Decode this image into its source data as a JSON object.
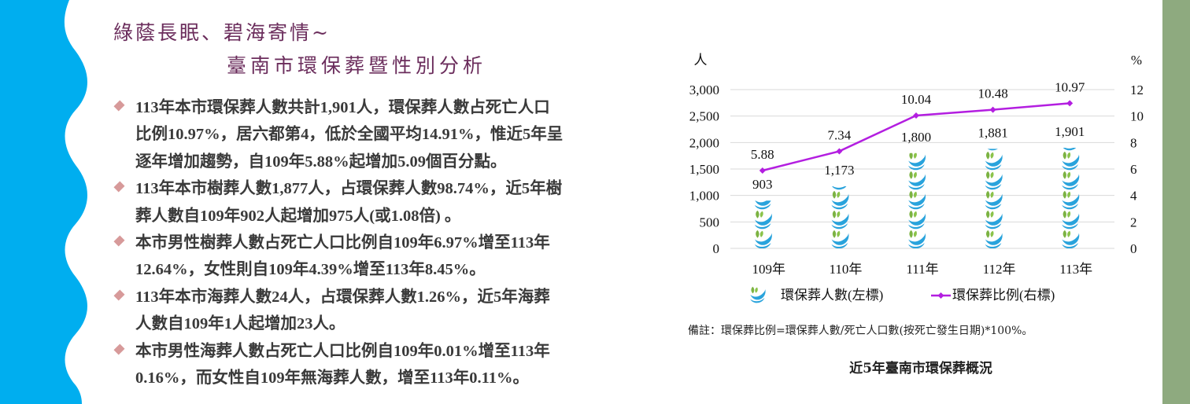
{
  "title": {
    "line1": "綠蔭長眠、碧海寄情~",
    "line2": "臺南市環保葬暨性別分析"
  },
  "bullets": [
    {
      "lines": [
        "113年本市環保葬人數共計1,901人，環保葬人數占死亡人口",
        "比例10.97%，居六都第4，低於全國平均14.91%，惟近5年呈",
        "逐年增加趨勢，自109年5.88%起增加5.09個百分點。"
      ]
    },
    {
      "lines": [
        "113年本市樹葬人數1,877人，占環保葬人數98.74%，近5年樹",
        "葬人數自109年902人起增加975人(或1.08倍) 。"
      ]
    },
    {
      "lines": [
        "本市男性樹葬人數占死亡人口比例自109年6.97%增至113年",
        "12.64%，女性則自109年4.39%增至113年8.45%。"
      ]
    },
    {
      "lines": [
        "113年本市海葬人數24人，占環保葬人數1.26%，近5年海葬",
        "人數自109年1人起增加23人。"
      ]
    },
    {
      "lines": [
        "本市男性海葬人數占死亡人口比例自109年0.01%增至113年",
        "0.16%，而女性自109年無海葬人數，增至113年0.11%。"
      ]
    }
  ],
  "chart_data": {
    "type": "bar+line",
    "categories": [
      "109年",
      "110年",
      "111年",
      "112年",
      "113年"
    ],
    "series": [
      {
        "name": "環保葬人數(左標)",
        "type": "pictograph-bar",
        "axis": "left",
        "values": [
          903,
          1173,
          1800,
          1881,
          1901
        ],
        "labels": [
          "903",
          "1,173",
          "1,800",
          "1,881",
          "1,901"
        ],
        "color": "#29a3dc"
      },
      {
        "name": "環保葬比例(右標)",
        "type": "line",
        "axis": "right",
        "values": [
          5.88,
          7.34,
          10.04,
          10.48,
          10.97
        ],
        "labels": [
          "5.88",
          "7.34",
          "10.04",
          "10.48",
          "10.97"
        ],
        "color": "#b31ee0"
      }
    ],
    "ylabel_left": "人",
    "ylabel_right": "%",
    "ylim_left": [
      0,
      3000
    ],
    "yticks_left": [
      "0",
      "500",
      "1,000",
      "1,500",
      "2,000",
      "2,500",
      "3,000"
    ],
    "ylim_right": [
      0,
      12
    ],
    "yticks_right": [
      "0",
      "2",
      "4",
      "6",
      "8",
      "10",
      "12"
    ],
    "grid": true,
    "legend": "bottom"
  },
  "note": "備註：環保葬比例=環保葬人數/死亡人口數(按死亡發生日期)*100%。",
  "caption": "近5年臺南市環保葬概況",
  "colors": {
    "left_band": "#00aeef",
    "right_band": "#8eaa7f",
    "title": "#6b2d5c",
    "bullet": "#d79a9a"
  }
}
